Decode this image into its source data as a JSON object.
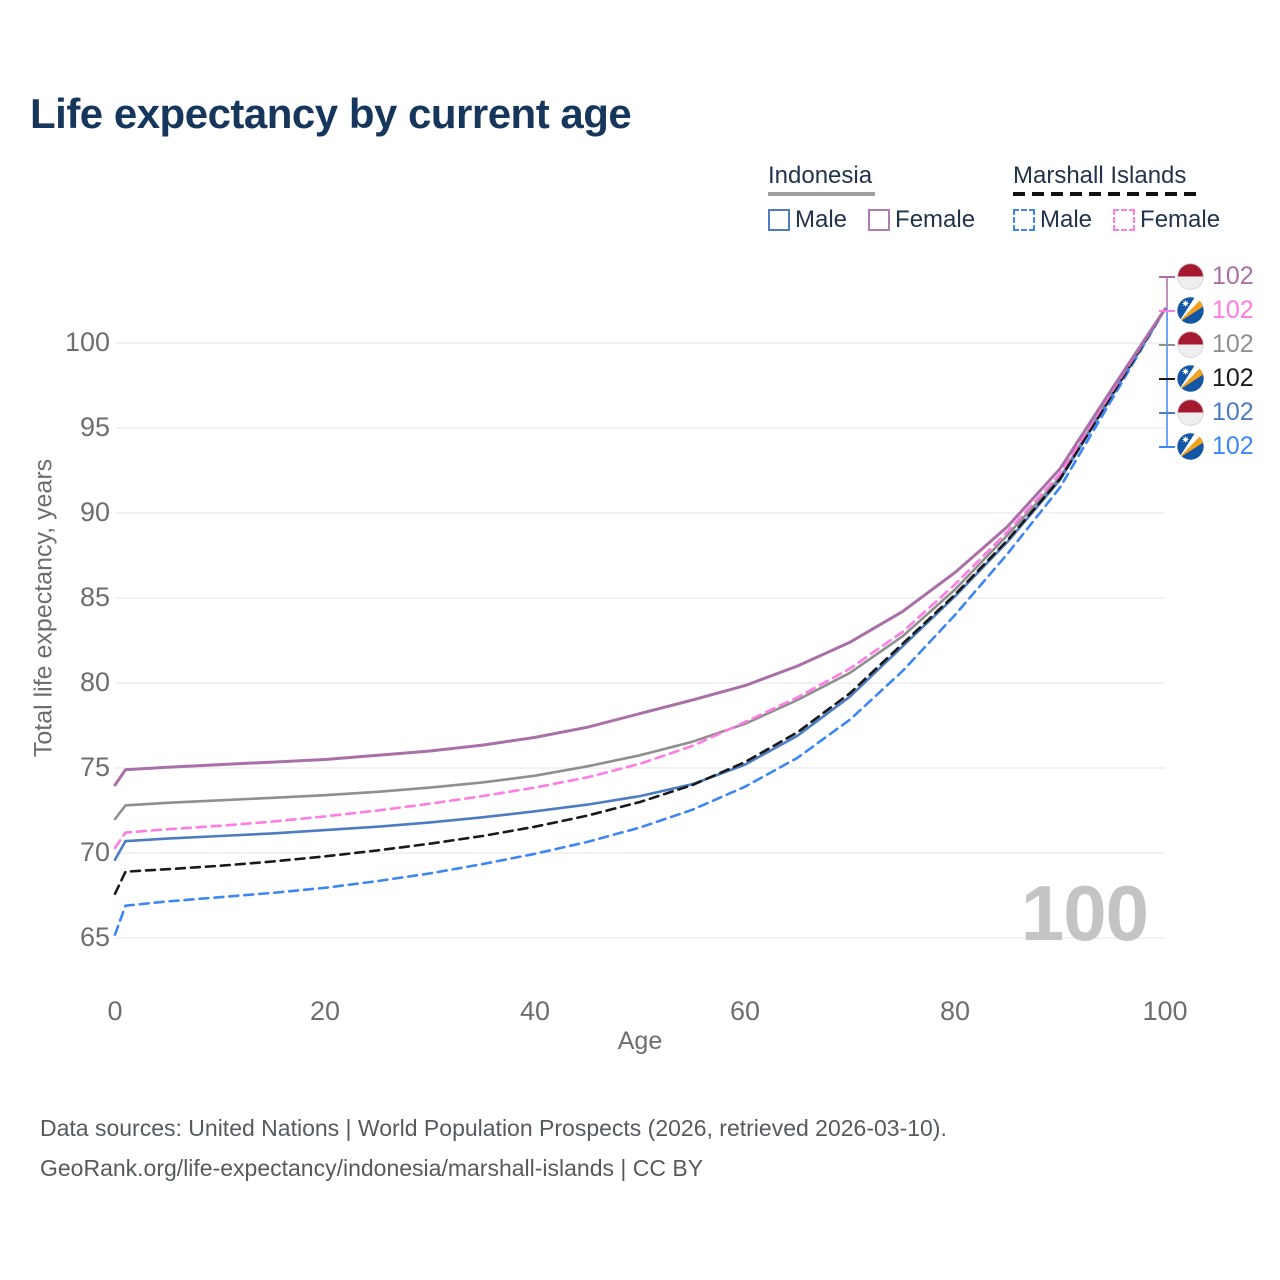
{
  "title": "Life expectancy by current age",
  "watermark": "100",
  "legend": {
    "groups": [
      {
        "country": "Indonesia",
        "line_style": "solid",
        "underline_color": "#a0a0a0",
        "items": [
          {
            "label": "Male",
            "color": "#4d7cc2"
          },
          {
            "label": "Female",
            "color": "#b27bae"
          }
        ]
      },
      {
        "country": "Marshall Islands",
        "line_style": "dashed",
        "underline_color": "#111111",
        "items": [
          {
            "label": "Male",
            "color": "#3d87f5"
          },
          {
            "label": "Female",
            "color": "#ff7ce5"
          }
        ]
      }
    ]
  },
  "chart_data": {
    "type": "line",
    "title": "Life expectancy by current age",
    "xlabel": "Age",
    "ylabel": "Total life expectancy, years",
    "xlim": [
      0,
      100
    ],
    "ylim": [
      63.5,
      103.5
    ],
    "grid": true,
    "legend_position": "top-right",
    "xticks": [
      0,
      20,
      40,
      60,
      80,
      100
    ],
    "yticks": [
      65,
      70,
      75,
      80,
      85,
      90,
      95,
      100
    ],
    "x": [
      0,
      1,
      5,
      10,
      15,
      20,
      25,
      30,
      35,
      40,
      45,
      50,
      55,
      60,
      65,
      70,
      75,
      80,
      85,
      90,
      95,
      100
    ],
    "series": [
      {
        "name": "Indonesia Female",
        "country": "Indonesia",
        "sex": "Female",
        "style": "solid",
        "color": "#a970a7",
        "width": 3,
        "values": [
          74.0,
          74.9,
          75.05,
          75.2,
          75.35,
          75.5,
          75.75,
          76.0,
          76.35,
          76.8,
          77.4,
          78.2,
          79.0,
          79.85,
          81.0,
          82.4,
          84.2,
          86.5,
          89.2,
          92.6,
          97.35,
          102
        ]
      },
      {
        "name": "Marshall Islands Female",
        "country": "Marshall Islands",
        "sex": "Female",
        "style": "dashed",
        "color": "#ff7ce5",
        "width": 2.6,
        "values": [
          70.3,
          71.2,
          71.4,
          71.6,
          71.85,
          72.15,
          72.5,
          72.9,
          73.35,
          73.85,
          74.45,
          75.25,
          76.3,
          77.7,
          79.15,
          80.85,
          83.0,
          85.8,
          88.9,
          92.3,
          97.2,
          102
        ]
      },
      {
        "name": "Indonesia Both sexes",
        "country": "Indonesia",
        "sex": "Both",
        "style": "solid",
        "color": "#8f8f8f",
        "width": 2.6,
        "values": [
          72.0,
          72.8,
          72.95,
          73.1,
          73.25,
          73.4,
          73.6,
          73.85,
          74.15,
          74.55,
          75.1,
          75.75,
          76.55,
          77.6,
          79.0,
          80.6,
          82.75,
          85.5,
          88.7,
          92.1,
          97.1,
          102
        ]
      },
      {
        "name": "Marshall Islands Both sexes",
        "country": "Marshall Islands",
        "sex": "Both",
        "style": "dashed",
        "color": "#1a1a1a",
        "width": 2.6,
        "values": [
          67.6,
          68.9,
          69.05,
          69.25,
          69.5,
          69.8,
          70.15,
          70.55,
          71.0,
          71.55,
          72.2,
          73.0,
          74.0,
          75.35,
          77.1,
          79.4,
          82.3,
          85.2,
          88.4,
          92.0,
          97.0,
          102
        ]
      },
      {
        "name": "Indonesia Male",
        "country": "Indonesia",
        "sex": "Male",
        "style": "solid",
        "color": "#4d7cc2",
        "width": 2.6,
        "values": [
          69.6,
          70.7,
          70.85,
          71.0,
          71.15,
          71.35,
          71.55,
          71.8,
          72.1,
          72.45,
          72.85,
          73.35,
          74.05,
          75.2,
          76.9,
          79.2,
          82.15,
          85.1,
          88.3,
          91.95,
          96.95,
          102
        ]
      },
      {
        "name": "Marshall Islands Male",
        "country": "Marshall Islands",
        "sex": "Male",
        "style": "dashed",
        "color": "#3d87f5",
        "width": 2.6,
        "values": [
          65.2,
          66.9,
          67.15,
          67.4,
          67.65,
          67.95,
          68.35,
          68.8,
          69.35,
          69.95,
          70.65,
          71.5,
          72.55,
          73.9,
          75.6,
          77.85,
          80.7,
          84.0,
          87.6,
          91.5,
          96.75,
          102
        ]
      }
    ],
    "end_labels": [
      {
        "flag": "indonesia",
        "value": "102",
        "color": "#a970a7"
      },
      {
        "flag": "marshall-islands",
        "value": "102",
        "color": "#ff7ce5"
      },
      {
        "flag": "indonesia",
        "value": "102",
        "color": "#8f8f8f"
      },
      {
        "flag": "marshall-islands",
        "value": "102",
        "color": "#1a1a1a"
      },
      {
        "flag": "indonesia",
        "value": "102",
        "color": "#4d7cc2"
      },
      {
        "flag": "marshall-islands",
        "value": "102",
        "color": "#3d87f5"
      }
    ],
    "flag_colors": {
      "indonesia_red": "#a51931",
      "indonesia_white": "#eeeeee",
      "marshall_blue": "#1456a6",
      "marshall_orange": "#f6a21d",
      "marshall_white": "#ffffff"
    }
  },
  "footer": {
    "line1": "Data sources: United Nations | World Population Prospects (2026, retrieved 2026-03-10).",
    "line2": "GeoRank.org/life-expectancy/indonesia/marshall-islands | CC BY"
  }
}
